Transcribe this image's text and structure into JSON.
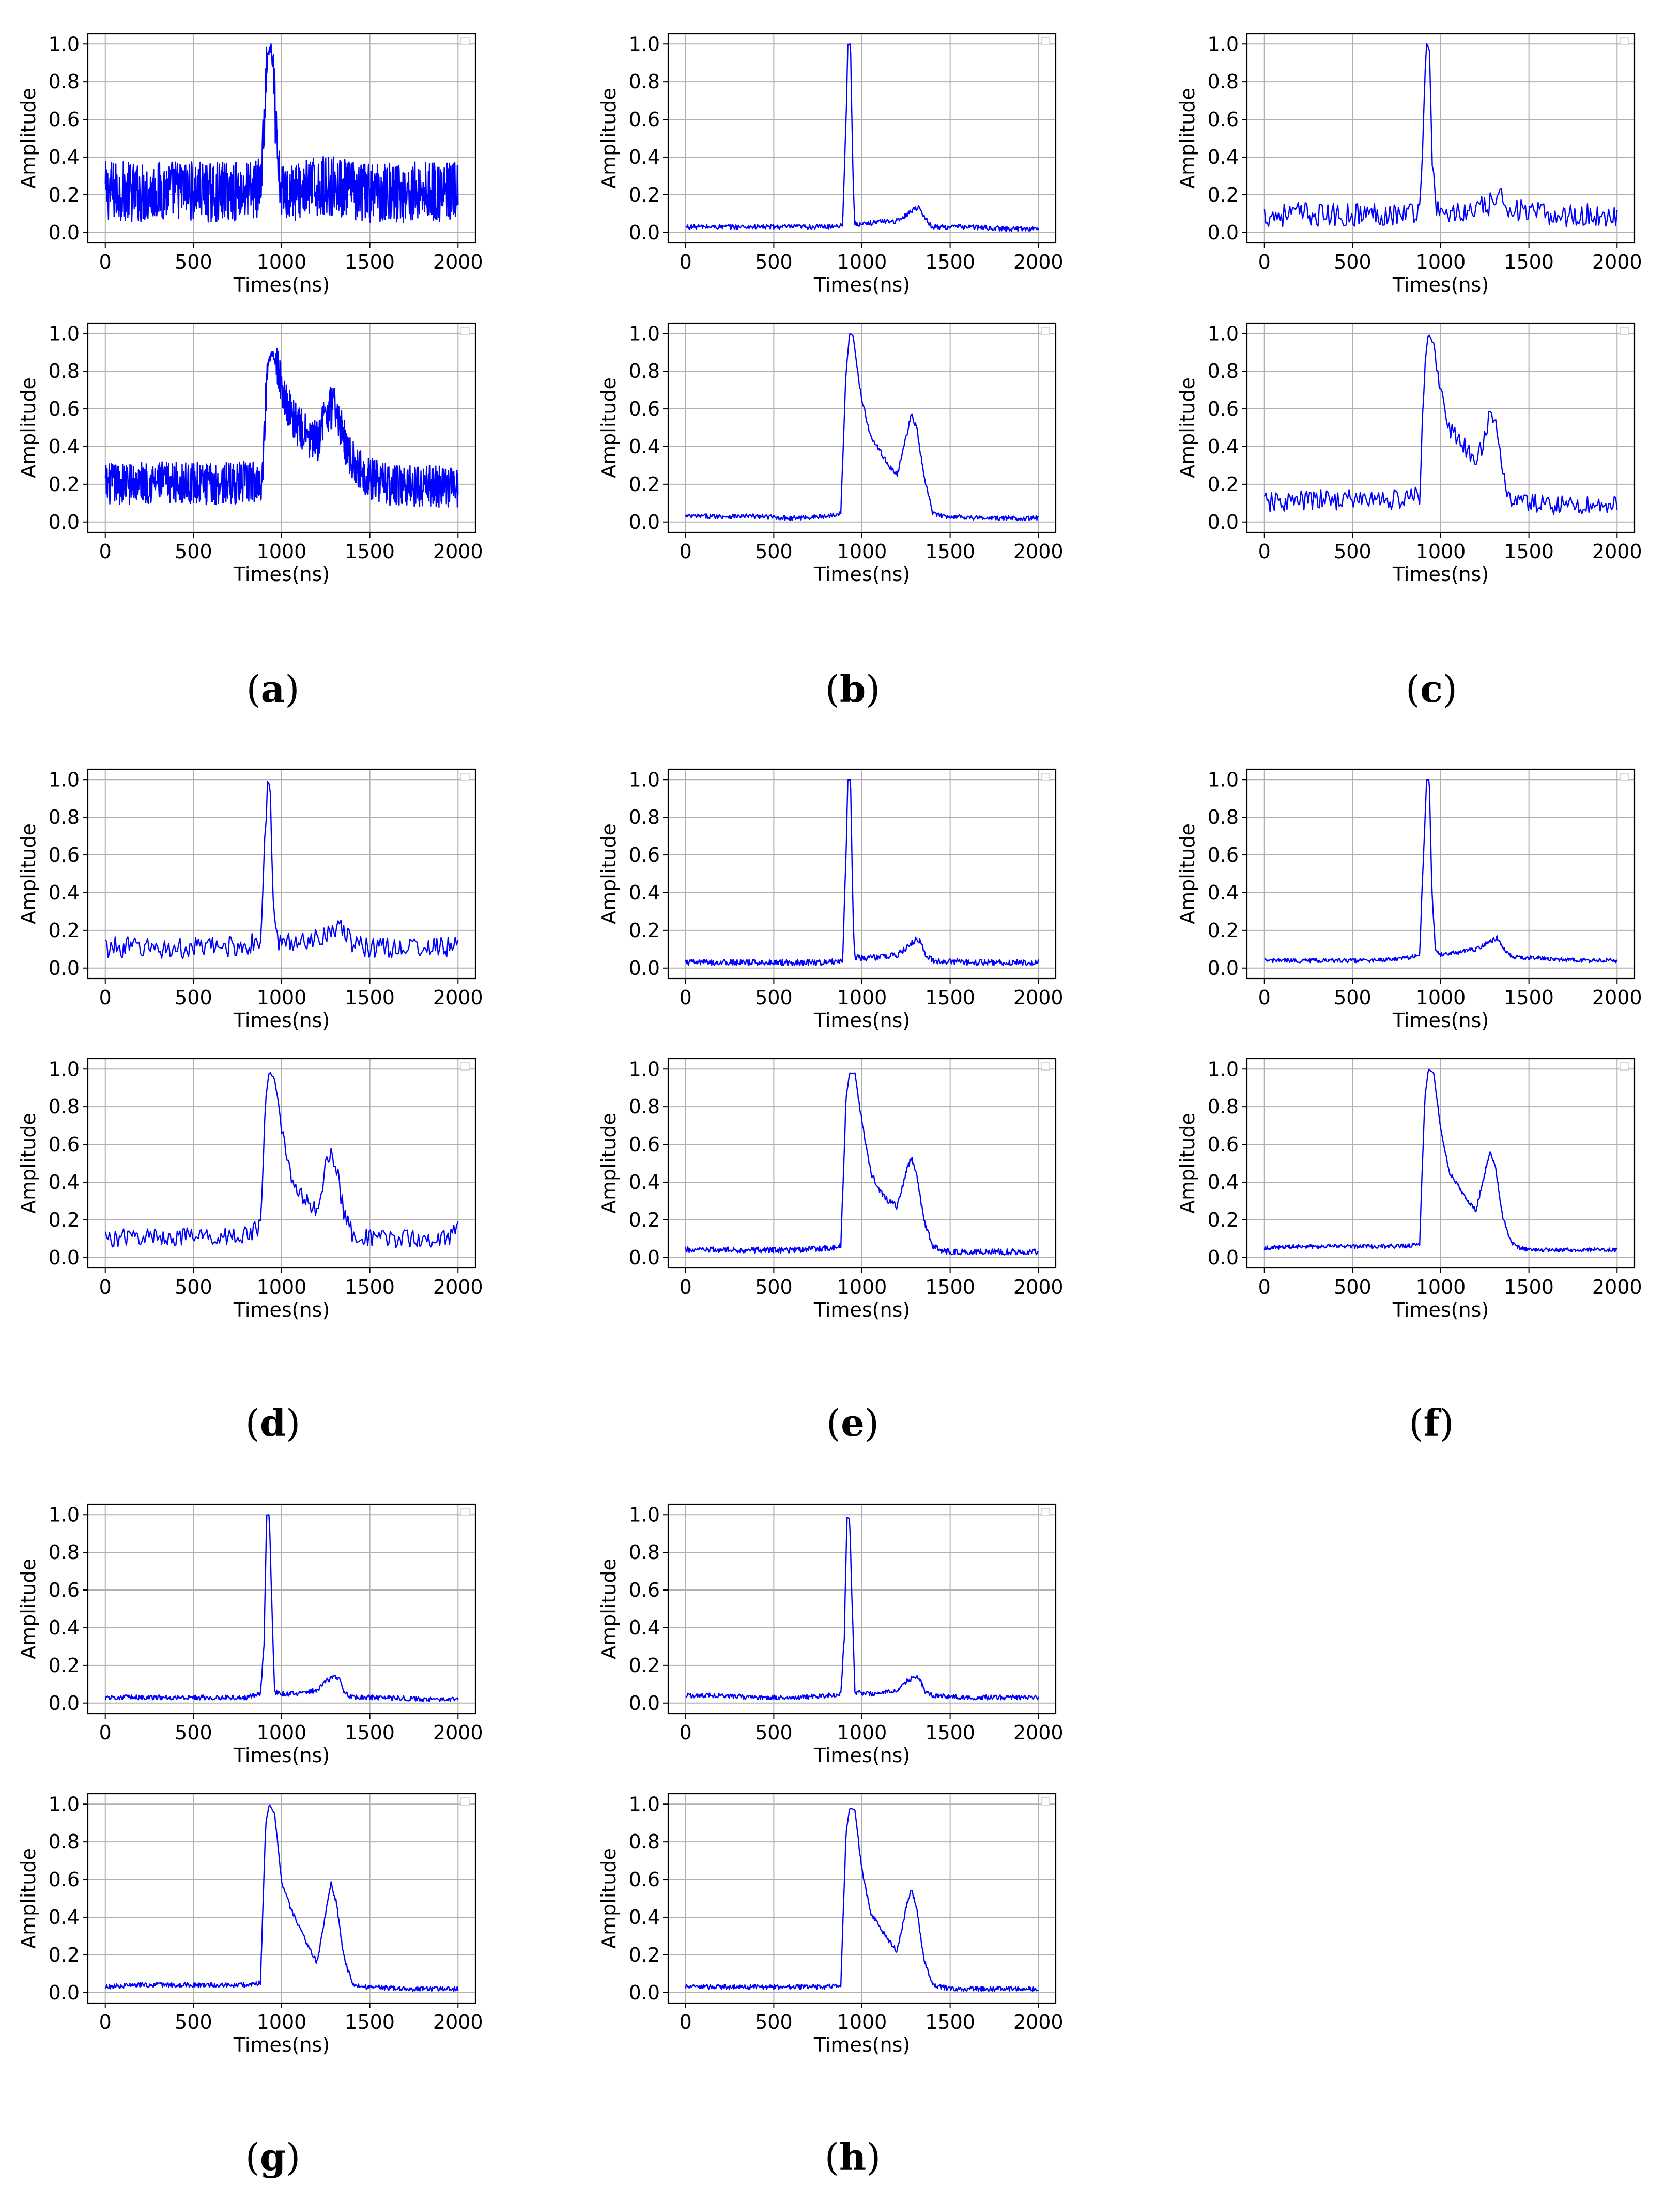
{
  "figure": {
    "panels": [
      {
        "id": "a",
        "label": "(a)",
        "paren_open": "(",
        "letter": "a",
        "paren_close": ")"
      },
      {
        "id": "b",
        "label": "(b)",
        "paren_open": "(",
        "letter": "b",
        "paren_close": ")"
      },
      {
        "id": "c",
        "label": "(c)",
        "paren_open": "(",
        "letter": "c",
        "paren_close": ")"
      },
      {
        "id": "d",
        "label": "(d)",
        "paren_open": "(",
        "letter": "d",
        "paren_close": ")"
      },
      {
        "id": "e",
        "label": "(e)",
        "paren_open": "(",
        "letter": "e",
        "paren_close": ")"
      },
      {
        "id": "f",
        "label": "(f)",
        "paren_open": "(",
        "letter": "f",
        "paren_close": ")"
      },
      {
        "id": "g",
        "label": "(g)",
        "paren_open": "(",
        "letter": "g",
        "paren_close": ")"
      },
      {
        "id": "h",
        "label": "(h)",
        "paren_open": "(",
        "letter": "h",
        "paren_close": ")"
      }
    ]
  },
  "chart_data": [
    {
      "panel": "a",
      "subplot": "top",
      "type": "line",
      "xlabel": "Times(ns)",
      "ylabel": "Amplitude",
      "xlim": [
        0,
        2000
      ],
      "ylim": [
        0,
        1.0
      ],
      "xticks": [
        0,
        500,
        1000,
        1500,
        2000
      ],
      "yticks": [
        0.0,
        0.2,
        0.4,
        0.6,
        0.8,
        1.0
      ],
      "grid": true,
      "color": "#0000ff",
      "x": [
        0,
        100,
        200,
        300,
        400,
        500,
        600,
        700,
        800,
        880,
        900,
        920,
        940,
        960,
        980,
        1000,
        1100,
        1200,
        1300,
        1400,
        1500,
        1600,
        1700,
        1800,
        1900,
        2000
      ],
      "y": [
        0.22,
        0.22,
        0.21,
        0.22,
        0.23,
        0.22,
        0.21,
        0.22,
        0.22,
        0.24,
        0.55,
        0.95,
        1.0,
        0.7,
        0.3,
        0.22,
        0.22,
        0.24,
        0.25,
        0.22,
        0.21,
        0.22,
        0.21,
        0.22,
        0.21,
        0.22
      ],
      "noise": 0.1,
      "resolution": 2
    },
    {
      "panel": "a",
      "subplot": "bottom",
      "type": "line",
      "xlabel": "Times(ns)",
      "ylabel": "Amplitude",
      "xlim": [
        0,
        2000
      ],
      "ylim": [
        0,
        1.0
      ],
      "xticks": [
        0,
        500,
        1000,
        1500,
        2000
      ],
      "yticks": [
        0.0,
        0.2,
        0.4,
        0.6,
        0.8,
        1.0
      ],
      "grid": true,
      "color": "#0000ff",
      "x": [
        0,
        200,
        400,
        600,
        800,
        890,
        920,
        950,
        1000,
        1050,
        1100,
        1150,
        1200,
        1250,
        1300,
        1350,
        1400,
        1500,
        1600,
        1800,
        2000
      ],
      "y": [
        0.2,
        0.21,
        0.21,
        0.2,
        0.21,
        0.22,
        0.85,
        0.92,
        0.72,
        0.58,
        0.5,
        0.45,
        0.42,
        0.58,
        0.62,
        0.45,
        0.32,
        0.23,
        0.2,
        0.19,
        0.19
      ],
      "noise": 0.07,
      "resolution": 2
    },
    {
      "panel": "b",
      "subplot": "top",
      "type": "line",
      "xlabel": "Times(ns)",
      "ylabel": "Amplitude",
      "xlim": [
        0,
        2000
      ],
      "ylim": [
        0,
        1.0
      ],
      "xticks": [
        0,
        500,
        1000,
        1500,
        2000
      ],
      "yticks": [
        0.0,
        0.2,
        0.4,
        0.6,
        0.8,
        1.0
      ],
      "grid": true,
      "color": "#0000ff",
      "x": [
        0,
        200,
        400,
        600,
        800,
        890,
        910,
        920,
        935,
        950,
        960,
        1000,
        1100,
        1200,
        1260,
        1300,
        1330,
        1360,
        1400,
        1600,
        1800,
        2000
      ],
      "y": [
        0.03,
        0.03,
        0.03,
        0.03,
        0.03,
        0.04,
        0.6,
        1.0,
        1.0,
        0.25,
        0.05,
        0.04,
        0.06,
        0.06,
        0.1,
        0.13,
        0.13,
        0.07,
        0.03,
        0.03,
        0.02,
        0.02
      ],
      "noise": 0.008,
      "resolution": 4
    },
    {
      "panel": "b",
      "subplot": "bottom",
      "type": "line",
      "xlabel": "Times(ns)",
      "ylabel": "Amplitude",
      "xlim": [
        0,
        2000
      ],
      "ylim": [
        0,
        1.0
      ],
      "xticks": [
        0,
        500,
        1000,
        1500,
        2000
      ],
      "yticks": [
        0.0,
        0.2,
        0.4,
        0.6,
        0.8,
        1.0
      ],
      "grid": true,
      "color": "#0000ff",
      "x": [
        0,
        200,
        400,
        600,
        800,
        880,
        910,
        930,
        950,
        975,
        1000,
        1050,
        1100,
        1150,
        1200,
        1250,
        1280,
        1310,
        1350,
        1400,
        1450,
        1500,
        1700,
        2000
      ],
      "y": [
        0.03,
        0.03,
        0.03,
        0.02,
        0.03,
        0.05,
        0.8,
        1.0,
        0.99,
        0.8,
        0.65,
        0.45,
        0.38,
        0.3,
        0.25,
        0.45,
        0.57,
        0.5,
        0.25,
        0.05,
        0.03,
        0.03,
        0.02,
        0.02
      ],
      "noise": 0.008,
      "resolution": 4
    },
    {
      "panel": "c",
      "subplot": "top",
      "type": "line",
      "xlabel": "Times(ns)",
      "ylabel": "Amplitude",
      "xlim": [
        0,
        2000
      ],
      "ylim": [
        0,
        1.0
      ],
      "xticks": [
        0,
        500,
        1000,
        1500,
        2000
      ],
      "yticks": [
        0.0,
        0.2,
        0.4,
        0.6,
        0.8,
        1.0
      ],
      "grid": true,
      "color": "#0000ff",
      "x": [
        0,
        200,
        400,
        600,
        800,
        880,
        900,
        920,
        935,
        950,
        970,
        1000,
        1200,
        1300,
        1350,
        1400,
        1500,
        1700,
        2000
      ],
      "y": [
        0.09,
        0.1,
        0.09,
        0.1,
        0.1,
        0.12,
        0.55,
        1.0,
        1.0,
        0.45,
        0.12,
        0.1,
        0.11,
        0.16,
        0.18,
        0.13,
        0.1,
        0.09,
        0.09
      ],
      "noise": 0.04,
      "resolution": 8
    },
    {
      "panel": "c",
      "subplot": "bottom",
      "type": "line",
      "xlabel": "Times(ns)",
      "ylabel": "Amplitude",
      "xlim": [
        0,
        2000
      ],
      "ylim": [
        0,
        1.0
      ],
      "xticks": [
        0,
        500,
        1000,
        1500,
        2000
      ],
      "yticks": [
        0.0,
        0.2,
        0.4,
        0.6,
        0.8,
        1.0
      ],
      "grid": true,
      "color": "#0000ff",
      "x": [
        0,
        200,
        400,
        600,
        800,
        880,
        910,
        930,
        960,
        1000,
        1050,
        1100,
        1150,
        1200,
        1250,
        1280,
        1310,
        1350,
        1400,
        1500,
        1700,
        2000
      ],
      "y": [
        0.1,
        0.11,
        0.12,
        0.12,
        0.12,
        0.14,
        0.85,
        1.0,
        0.95,
        0.7,
        0.5,
        0.42,
        0.38,
        0.28,
        0.48,
        0.58,
        0.5,
        0.25,
        0.12,
        0.1,
        0.09,
        0.09
      ],
      "noise": 0.035,
      "resolution": 8
    },
    {
      "panel": "d",
      "subplot": "top",
      "type": "line",
      "xlabel": "Times(ns)",
      "ylabel": "Amplitude",
      "xlim": [
        0,
        2000
      ],
      "ylim": [
        0,
        1.0
      ],
      "xticks": [
        0,
        500,
        1000,
        1500,
        2000
      ],
      "yticks": [
        0.0,
        0.2,
        0.4,
        0.6,
        0.8,
        1.0
      ],
      "grid": true,
      "color": "#0000ff",
      "x": [
        0,
        200,
        400,
        600,
        800,
        880,
        900,
        920,
        935,
        950,
        970,
        1000,
        1200,
        1300,
        1350,
        1400,
        1500,
        1700,
        2000
      ],
      "y": [
        0.11,
        0.11,
        0.1,
        0.11,
        0.12,
        0.14,
        0.55,
        0.99,
        0.97,
        0.4,
        0.15,
        0.13,
        0.16,
        0.22,
        0.19,
        0.13,
        0.11,
        0.11,
        0.11
      ],
      "noise": 0.035,
      "resolution": 8
    },
    {
      "panel": "d",
      "subplot": "bottom",
      "type": "line",
      "xlabel": "Times(ns)",
      "ylabel": "Amplitude",
      "xlim": [
        0,
        2000
      ],
      "ylim": [
        0,
        1.0
      ],
      "xticks": [
        0,
        500,
        1000,
        1500,
        2000
      ],
      "yticks": [
        0.0,
        0.2,
        0.4,
        0.6,
        0.8,
        1.0
      ],
      "grid": true,
      "color": "#0000ff",
      "x": [
        0,
        200,
        400,
        600,
        800,
        880,
        910,
        930,
        960,
        1000,
        1050,
        1100,
        1150,
        1200,
        1250,
        1280,
        1310,
        1350,
        1400,
        1500,
        1700,
        1950,
        2000
      ],
      "y": [
        0.1,
        0.11,
        0.11,
        0.11,
        0.12,
        0.16,
        0.85,
        0.99,
        0.95,
        0.68,
        0.45,
        0.35,
        0.28,
        0.25,
        0.48,
        0.56,
        0.48,
        0.25,
        0.13,
        0.1,
        0.1,
        0.1,
        0.2
      ],
      "noise": 0.03,
      "resolution": 8
    },
    {
      "panel": "e",
      "subplot": "top",
      "type": "line",
      "xlabel": "Times(ns)",
      "ylabel": "Amplitude",
      "xlim": [
        0,
        2000
      ],
      "ylim": [
        0,
        1.0
      ],
      "xticks": [
        0,
        500,
        1000,
        1500,
        2000
      ],
      "yticks": [
        0.0,
        0.2,
        0.4,
        0.6,
        0.8,
        1.0
      ],
      "grid": true,
      "color": "#0000ff",
      "x": [
        0,
        200,
        400,
        600,
        800,
        890,
        910,
        920,
        935,
        950,
        960,
        1000,
        1100,
        1200,
        1260,
        1300,
        1330,
        1360,
        1400,
        1600,
        1800,
        2000
      ],
      "y": [
        0.03,
        0.03,
        0.03,
        0.03,
        0.03,
        0.04,
        0.6,
        1.0,
        1.0,
        0.25,
        0.06,
        0.05,
        0.06,
        0.07,
        0.11,
        0.15,
        0.14,
        0.07,
        0.04,
        0.03,
        0.03,
        0.03
      ],
      "noise": 0.01,
      "resolution": 4
    },
    {
      "panel": "e",
      "subplot": "bottom",
      "type": "line",
      "xlabel": "Times(ns)",
      "ylabel": "Amplitude",
      "xlim": [
        0,
        2000
      ],
      "ylim": [
        0,
        1.0
      ],
      "xticks": [
        0,
        500,
        1000,
        1500,
        2000
      ],
      "yticks": [
        0.0,
        0.2,
        0.4,
        0.6,
        0.8,
        1.0
      ],
      "grid": true,
      "color": "#0000ff",
      "x": [
        0,
        200,
        400,
        600,
        800,
        880,
        910,
        930,
        960,
        1000,
        1050,
        1100,
        1150,
        1200,
        1250,
        1280,
        1310,
        1350,
        1400,
        1450,
        1500,
        1700,
        2000
      ],
      "y": [
        0.04,
        0.04,
        0.04,
        0.04,
        0.05,
        0.06,
        0.85,
        0.98,
        0.98,
        0.72,
        0.45,
        0.36,
        0.3,
        0.27,
        0.45,
        0.53,
        0.45,
        0.2,
        0.06,
        0.04,
        0.03,
        0.03,
        0.03
      ],
      "noise": 0.01,
      "resolution": 4
    },
    {
      "panel": "f",
      "subplot": "top",
      "type": "line",
      "xlabel": "Times(ns)",
      "ylabel": "Amplitude",
      "xlim": [
        0,
        2000
      ],
      "ylim": [
        0,
        1.0
      ],
      "xticks": [
        0,
        500,
        1000,
        1500,
        2000
      ],
      "yticks": [
        0.0,
        0.2,
        0.4,
        0.6,
        0.8,
        1.0
      ],
      "grid": true,
      "color": "#0000ff",
      "x": [
        0,
        200,
        400,
        600,
        800,
        880,
        900,
        920,
        935,
        950,
        970,
        1000,
        1200,
        1280,
        1320,
        1360,
        1400,
        1600,
        1800,
        2000
      ],
      "y": [
        0.04,
        0.04,
        0.04,
        0.04,
        0.05,
        0.07,
        0.55,
        1.0,
        1.0,
        0.4,
        0.1,
        0.07,
        0.1,
        0.14,
        0.16,
        0.1,
        0.06,
        0.05,
        0.04,
        0.04
      ],
      "noise": 0.007,
      "resolution": 4
    },
    {
      "panel": "f",
      "subplot": "bottom",
      "type": "line",
      "xlabel": "Times(ns)",
      "ylabel": "Amplitude",
      "xlim": [
        0,
        2000
      ],
      "ylim": [
        0,
        1.0
      ],
      "xticks": [
        0,
        500,
        1000,
        1500,
        2000
      ],
      "yticks": [
        0.0,
        0.2,
        0.4,
        0.6,
        0.8,
        1.0
      ],
      "grid": true,
      "color": "#0000ff",
      "x": [
        0,
        200,
        400,
        600,
        800,
        880,
        910,
        930,
        960,
        1000,
        1050,
        1100,
        1150,
        1200,
        1250,
        1280,
        1310,
        1350,
        1400,
        1450,
        1500,
        1700,
        2000
      ],
      "y": [
        0.05,
        0.06,
        0.06,
        0.06,
        0.06,
        0.07,
        0.85,
        1.0,
        0.98,
        0.68,
        0.45,
        0.38,
        0.3,
        0.25,
        0.45,
        0.56,
        0.48,
        0.22,
        0.08,
        0.05,
        0.04,
        0.04,
        0.04
      ],
      "noise": 0.007,
      "resolution": 4
    },
    {
      "panel": "g",
      "subplot": "top",
      "type": "line",
      "xlabel": "Times(ns)",
      "ylabel": "Amplitude",
      "xlim": [
        0,
        2000
      ],
      "ylim": [
        0,
        1.0
      ],
      "xticks": [
        0,
        500,
        1000,
        1500,
        2000
      ],
      "yticks": [
        0.0,
        0.2,
        0.4,
        0.6,
        0.8,
        1.0
      ],
      "grid": true,
      "color": "#0000ff",
      "x": [
        0,
        200,
        400,
        600,
        800,
        880,
        900,
        915,
        930,
        945,
        960,
        1000,
        1100,
        1200,
        1260,
        1300,
        1330,
        1360,
        1400,
        1600,
        1800,
        2000
      ],
      "y": [
        0.03,
        0.03,
        0.03,
        0.03,
        0.03,
        0.05,
        0.3,
        1.0,
        1.0,
        0.5,
        0.06,
        0.05,
        0.05,
        0.07,
        0.12,
        0.14,
        0.12,
        0.05,
        0.03,
        0.03,
        0.02,
        0.02
      ],
      "noise": 0.008,
      "resolution": 4
    },
    {
      "panel": "g",
      "subplot": "bottom",
      "type": "line",
      "xlabel": "Times(ns)",
      "ylabel": "Amplitude",
      "xlim": [
        0,
        2000
      ],
      "ylim": [
        0,
        1.0
      ],
      "xticks": [
        0,
        500,
        1000,
        1500,
        2000
      ],
      "yticks": [
        0.0,
        0.2,
        0.4,
        0.6,
        0.8,
        1.0
      ],
      "grid": true,
      "color": "#0000ff",
      "x": [
        0,
        200,
        400,
        600,
        800,
        880,
        910,
        930,
        960,
        1000,
        1050,
        1100,
        1150,
        1200,
        1250,
        1280,
        1310,
        1350,
        1400,
        1450,
        1500,
        1700,
        2000
      ],
      "y": [
        0.03,
        0.04,
        0.04,
        0.04,
        0.04,
        0.05,
        0.9,
        1.0,
        0.95,
        0.58,
        0.45,
        0.35,
        0.25,
        0.16,
        0.42,
        0.58,
        0.48,
        0.2,
        0.05,
        0.03,
        0.03,
        0.02,
        0.02
      ],
      "noise": 0.008,
      "resolution": 4
    },
    {
      "panel": "h",
      "subplot": "top",
      "type": "line",
      "xlabel": "Times(ns)",
      "ylabel": "Amplitude",
      "xlim": [
        0,
        2000
      ],
      "ylim": [
        0,
        1.0
      ],
      "xticks": [
        0,
        500,
        1000,
        1500,
        2000
      ],
      "yticks": [
        0.0,
        0.2,
        0.4,
        0.6,
        0.8,
        1.0
      ],
      "grid": true,
      "color": "#0000ff",
      "x": [
        0,
        200,
        400,
        600,
        800,
        880,
        900,
        915,
        930,
        945,
        960,
        1000,
        1100,
        1200,
        1260,
        1300,
        1330,
        1360,
        1400,
        1600,
        1800,
        2000
      ],
      "y": [
        0.04,
        0.04,
        0.03,
        0.03,
        0.04,
        0.05,
        0.35,
        0.99,
        0.98,
        0.5,
        0.06,
        0.05,
        0.05,
        0.07,
        0.12,
        0.14,
        0.12,
        0.06,
        0.04,
        0.03,
        0.03,
        0.03
      ],
      "noise": 0.008,
      "resolution": 4
    },
    {
      "panel": "h",
      "subplot": "bottom",
      "type": "line",
      "xlabel": "Times(ns)",
      "ylabel": "Amplitude",
      "xlim": [
        0,
        2000
      ],
      "ylim": [
        0,
        1.0
      ],
      "xticks": [
        0,
        500,
        1000,
        1500,
        2000
      ],
      "yticks": [
        0.0,
        0.2,
        0.4,
        0.6,
        0.8,
        1.0
      ],
      "grid": true,
      "color": "#0000ff",
      "x": [
        0,
        200,
        400,
        600,
        800,
        880,
        910,
        930,
        960,
        1000,
        1050,
        1100,
        1150,
        1200,
        1250,
        1280,
        1310,
        1350,
        1400,
        1450,
        1500,
        1700,
        2000
      ],
      "y": [
        0.03,
        0.03,
        0.03,
        0.03,
        0.03,
        0.04,
        0.85,
        0.98,
        0.97,
        0.65,
        0.42,
        0.35,
        0.28,
        0.22,
        0.45,
        0.55,
        0.45,
        0.18,
        0.04,
        0.03,
        0.02,
        0.02,
        0.02
      ],
      "noise": 0.008,
      "resolution": 4
    }
  ]
}
